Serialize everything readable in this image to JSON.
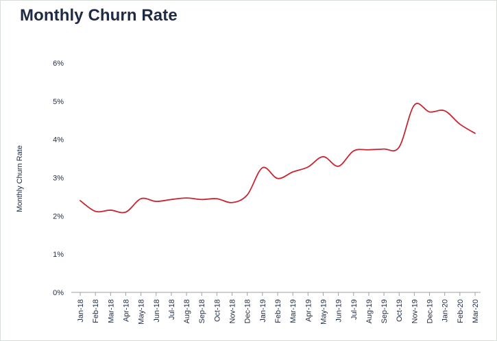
{
  "chart_data": {
    "type": "line",
    "title": "Monthly Churn Rate",
    "xlabel": "",
    "ylabel": "Monthly Churn Rate",
    "ylim": [
      0,
      6
    ],
    "yticks": [
      "0%",
      "1%",
      "2%",
      "3%",
      "4%",
      "5%",
      "6%"
    ],
    "grid": false,
    "categories": [
      "Jan-18",
      "Feb-18",
      "Mar-18",
      "Apr-18",
      "May-18",
      "Jun-18",
      "Jul-18",
      "Aug-18",
      "Sep-18",
      "Oct-18",
      "Nov-18",
      "Dec-18",
      "Jan-19",
      "Feb-19",
      "Mar-19",
      "Apr-19",
      "May-19",
      "Jun-19",
      "Jul-19",
      "Aug-19",
      "Sep-19",
      "Oct-19",
      "Nov-19",
      "Dec-19",
      "Jan-20",
      "Feb-20",
      "Mar-20"
    ],
    "series": [
      {
        "color": "#c9242f",
        "values": [
          2.4,
          2.12,
          2.15,
          2.1,
          2.45,
          2.38,
          2.43,
          2.47,
          2.43,
          2.45,
          2.35,
          2.55,
          3.26,
          2.98,
          3.15,
          3.28,
          3.55,
          3.3,
          3.7,
          3.73,
          3.75,
          3.8,
          4.9,
          4.72,
          4.75,
          4.4,
          4.16
        ]
      }
    ]
  }
}
